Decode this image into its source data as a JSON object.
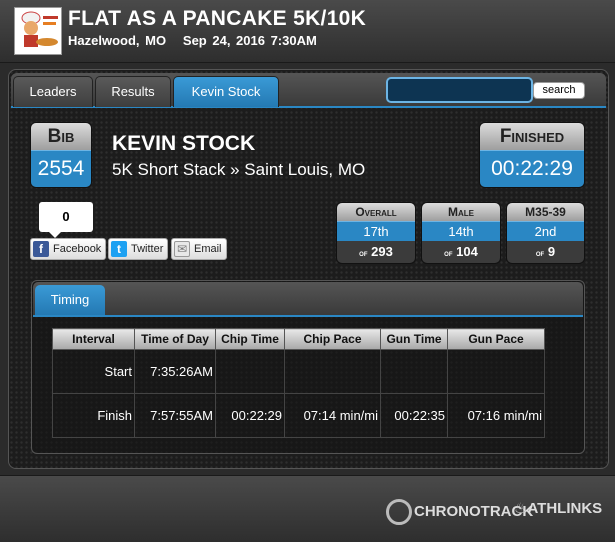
{
  "header": {
    "logo_icon": "pancake-chef-logo",
    "title": "FLAT AS A PANCAKE 5K/10K",
    "location": "Hazelwood, MO",
    "datetime": "Sep 24, 2016 7:30AM"
  },
  "tabs": [
    {
      "label": "Leaders"
    },
    {
      "label": "Results"
    },
    {
      "label": "Kevin Stock"
    }
  ],
  "search": {
    "value": "",
    "button_label": "search"
  },
  "athlete": {
    "bib_label": "Bib",
    "bib": "2554",
    "name": "KEVIN STOCK",
    "event": "5K Short Stack » Saint Louis, MO",
    "finished_label": "Finished",
    "finish_time": "00:22:29"
  },
  "social": {
    "count": "0",
    "facebook": "Facebook",
    "twitter": "Twitter",
    "email": "Email"
  },
  "rankings": [
    {
      "label": "Overall",
      "place": "17th",
      "of_label": "of",
      "total": "293"
    },
    {
      "label": "Male",
      "place": "14th",
      "of_label": "of",
      "total": "104"
    },
    {
      "label": "M35-39",
      "place": "2nd",
      "of_label": "of",
      "total": "9"
    }
  ],
  "timing": {
    "tab_label": "Timing",
    "columns": [
      "Interval",
      "Time of Day",
      "Chip Time",
      "Chip Pace",
      "Gun Time",
      "Gun Pace"
    ],
    "rows": [
      [
        "Start",
        "7:35:26AM",
        "",
        "",
        "",
        ""
      ],
      [
        "Finish",
        "7:57:55AM",
        "00:22:29",
        "07:14 min/mi",
        "00:22:35",
        "07:16 min/mi"
      ]
    ]
  },
  "footer": {
    "chronotrack": "CHRONOTRACK",
    "athlinks": "ATHLINKS"
  },
  "colors": {
    "accent": "#2a87c4",
    "background": "#1c1c1c"
  }
}
